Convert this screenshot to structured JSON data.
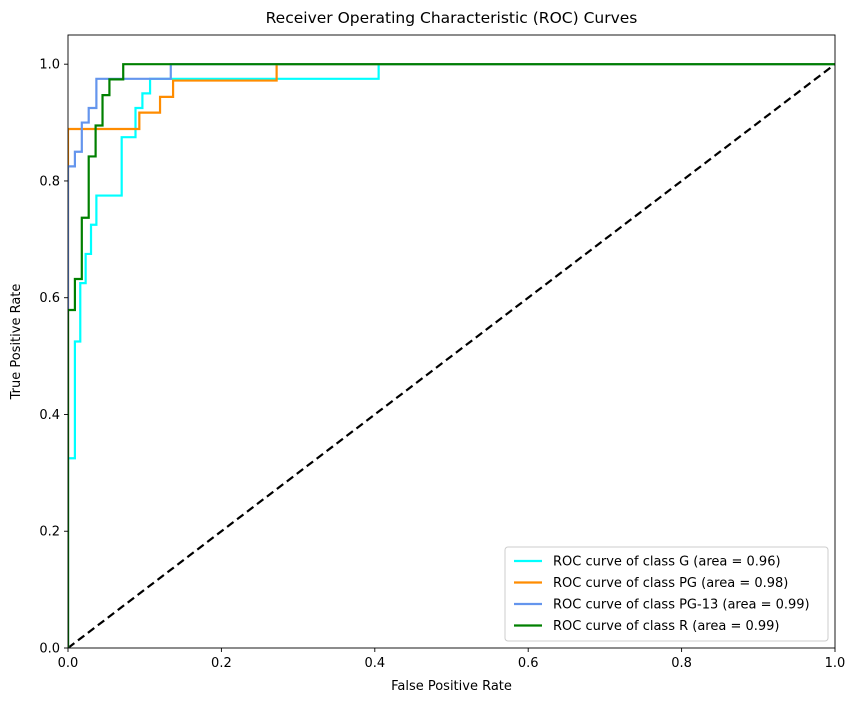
{
  "chart_data": {
    "type": "line",
    "title": "Receiver Operating Characteristic (ROC) Curves",
    "xlabel": "False Positive Rate",
    "ylabel": "True Positive Rate",
    "xlim": [
      0.0,
      1.0
    ],
    "ylim": [
      0.0,
      1.05
    ],
    "xticks": [
      "0.0",
      "0.2",
      "0.4",
      "0.6",
      "0.8",
      "1.0"
    ],
    "xtick_values": [
      0.0,
      0.2,
      0.4,
      0.6,
      0.8,
      1.0
    ],
    "yticks": [
      "0.0",
      "0.2",
      "0.4",
      "0.6",
      "0.8",
      "1.0"
    ],
    "ytick_values": [
      0.0,
      0.2,
      0.4,
      0.6,
      0.8,
      1.0
    ],
    "grid": false,
    "legend_position": "lower-right",
    "series": [
      {
        "name": "ROC curve of class G (area = 0.96)",
        "color": "#00ffff",
        "x": [
          0.0,
          0.0,
          0.009,
          0.009,
          0.016,
          0.016,
          0.023,
          0.023,
          0.03,
          0.03,
          0.037,
          0.037,
          0.046,
          0.046,
          0.07,
          0.07,
          0.088,
          0.088,
          0.097,
          0.097,
          0.107,
          0.107,
          0.405,
          0.405,
          1.0
        ],
        "y": [
          0.0,
          0.325,
          0.325,
          0.525,
          0.525,
          0.625,
          0.625,
          0.675,
          0.675,
          0.725,
          0.725,
          0.775,
          0.775,
          0.775,
          0.775,
          0.875,
          0.875,
          0.925,
          0.925,
          0.95,
          0.95,
          0.975,
          0.975,
          1.0,
          1.0
        ]
      },
      {
        "name": "ROC curve of class PG (area = 0.98)",
        "color": "#ff8c00",
        "x": [
          0.0,
          0.0,
          0.0,
          0.0,
          0.093,
          0.093,
          0.12,
          0.12,
          0.137,
          0.137,
          0.272,
          0.272,
          1.0
        ],
        "y": [
          0.0,
          0.827,
          0.827,
          0.889,
          0.889,
          0.917,
          0.917,
          0.944,
          0.944,
          0.972,
          0.972,
          1.0,
          1.0
        ]
      },
      {
        "name": "ROC curve of class PG-13 (area = 0.99)",
        "color": "#6495ed",
        "x": [
          0.0,
          0.0,
          0.0,
          0.0,
          0.009,
          0.009,
          0.018,
          0.018,
          0.027,
          0.027,
          0.037,
          0.037,
          0.134,
          0.134,
          1.0
        ],
        "y": [
          0.0,
          0.575,
          0.575,
          0.825,
          0.825,
          0.85,
          0.85,
          0.9,
          0.9,
          0.925,
          0.925,
          0.975,
          0.975,
          1.0,
          1.0
        ]
      },
      {
        "name": "ROC curve of class R (area = 0.99)",
        "color": "#008000",
        "x": [
          0.0,
          0.0,
          0.009,
          0.009,
          0.018,
          0.018,
          0.027,
          0.027,
          0.036,
          0.036,
          0.045,
          0.045,
          0.054,
          0.054,
          0.072,
          0.072,
          1.0
        ],
        "y": [
          0.0,
          0.579,
          0.579,
          0.632,
          0.632,
          0.737,
          0.737,
          0.842,
          0.842,
          0.895,
          0.895,
          0.947,
          0.947,
          0.974,
          0.974,
          1.0,
          1.0
        ]
      }
    ],
    "diagonal": {
      "x": [
        0.0,
        1.0
      ],
      "y": [
        0.0,
        1.0
      ],
      "color": "#000000",
      "style": "dashed"
    }
  }
}
